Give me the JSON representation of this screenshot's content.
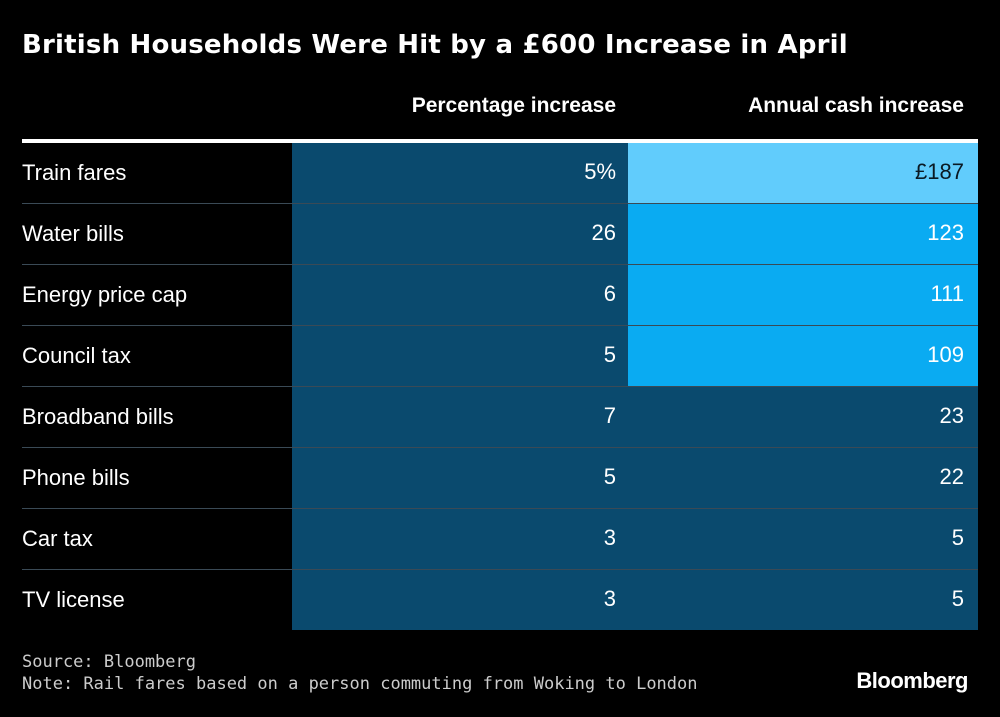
{
  "chart_data": {
    "type": "table",
    "title": "British Households Were Hit by a £600 Increase in April",
    "columns": [
      "Percentage increase",
      "Annual cash increase"
    ],
    "rows": [
      {
        "label": "Train fares",
        "pct": "5%",
        "cash": "£187",
        "pct_value": 5,
        "cash_value": 187
      },
      {
        "label": "Water bills",
        "pct": "26",
        "cash": "123",
        "pct_value": 26,
        "cash_value": 123
      },
      {
        "label": "Energy price cap",
        "pct": "6",
        "cash": "111",
        "pct_value": 6,
        "cash_value": 111
      },
      {
        "label": "Council tax",
        "pct": "5",
        "cash": "109",
        "pct_value": 5,
        "cash_value": 109
      },
      {
        "label": "Broadband bills",
        "pct": "7",
        "cash": "23",
        "pct_value": 7,
        "cash_value": 23
      },
      {
        "label": "Phone bills",
        "pct": "5",
        "cash": "22",
        "pct_value": 5,
        "cash_value": 22
      },
      {
        "label": "Car tax",
        "pct": "3",
        "cash": "5",
        "pct_value": 3,
        "cash_value": 5
      },
      {
        "label": "TV license",
        "pct": "3",
        "cash": "5",
        "pct_value": 3,
        "cash_value": 5
      }
    ],
    "cell_colors": {
      "base": "#0a4a6e",
      "mid": "#0aabf2",
      "high": "#61ccfc",
      "high_text": "#0a1a24",
      "text": "#ffffff"
    }
  },
  "footer": {
    "source": "Source: Bloomberg",
    "note": "Note: Rail fares based on a person commuting from Woking to London",
    "logo": "Bloomberg"
  },
  "colors": {
    "background": "#000000",
    "rule": "#ffffff",
    "row_divider": "#3a4a56"
  }
}
